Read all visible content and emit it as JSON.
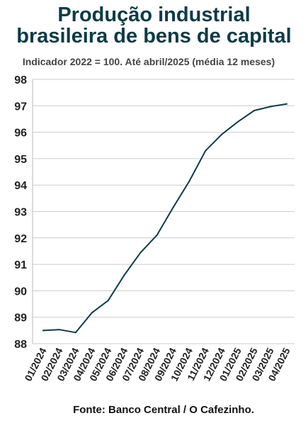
{
  "page": {
    "title_line1": "Produção industrial",
    "title_line2": "brasileira de bens de capital",
    "subtitle": "Indicador 2022 = 100. Até abril/2025 (média 12 meses)",
    "source": "Fonte: Banco Central / O Cafezinho."
  },
  "colors": {
    "title": "#0d3b46",
    "line": "#0d3b46",
    "grid": "#cccccc",
    "text": "#222222"
  },
  "chart_data": {
    "type": "line",
    "title": "Produção industrial brasileira de bens de capital",
    "subtitle": "Indicador 2022 = 100. Até abril/2025 (média 12 meses)",
    "xlabel": "",
    "ylabel": "",
    "ylim": [
      88,
      98
    ],
    "yticks": [
      88,
      89,
      90,
      91,
      92,
      93,
      94,
      95,
      96,
      97,
      98
    ],
    "grid": true,
    "legend": "none",
    "categories": [
      "01/2024",
      "02/2024",
      "03/2024",
      "04/2024",
      "05/2024",
      "06/2024",
      "07/2024",
      "08/2024",
      "09/2024",
      "10/2024",
      "11/2024",
      "12/2024",
      "01/2025",
      "02/2025",
      "03/2025",
      "04/2025"
    ],
    "series": [
      {
        "values": [
          88.5,
          88.53,
          88.42,
          89.17,
          89.63,
          90.6,
          91.45,
          92.1,
          93.15,
          94.15,
          95.3,
          95.92,
          96.4,
          96.82,
          96.97,
          97.07
        ]
      }
    ]
  }
}
